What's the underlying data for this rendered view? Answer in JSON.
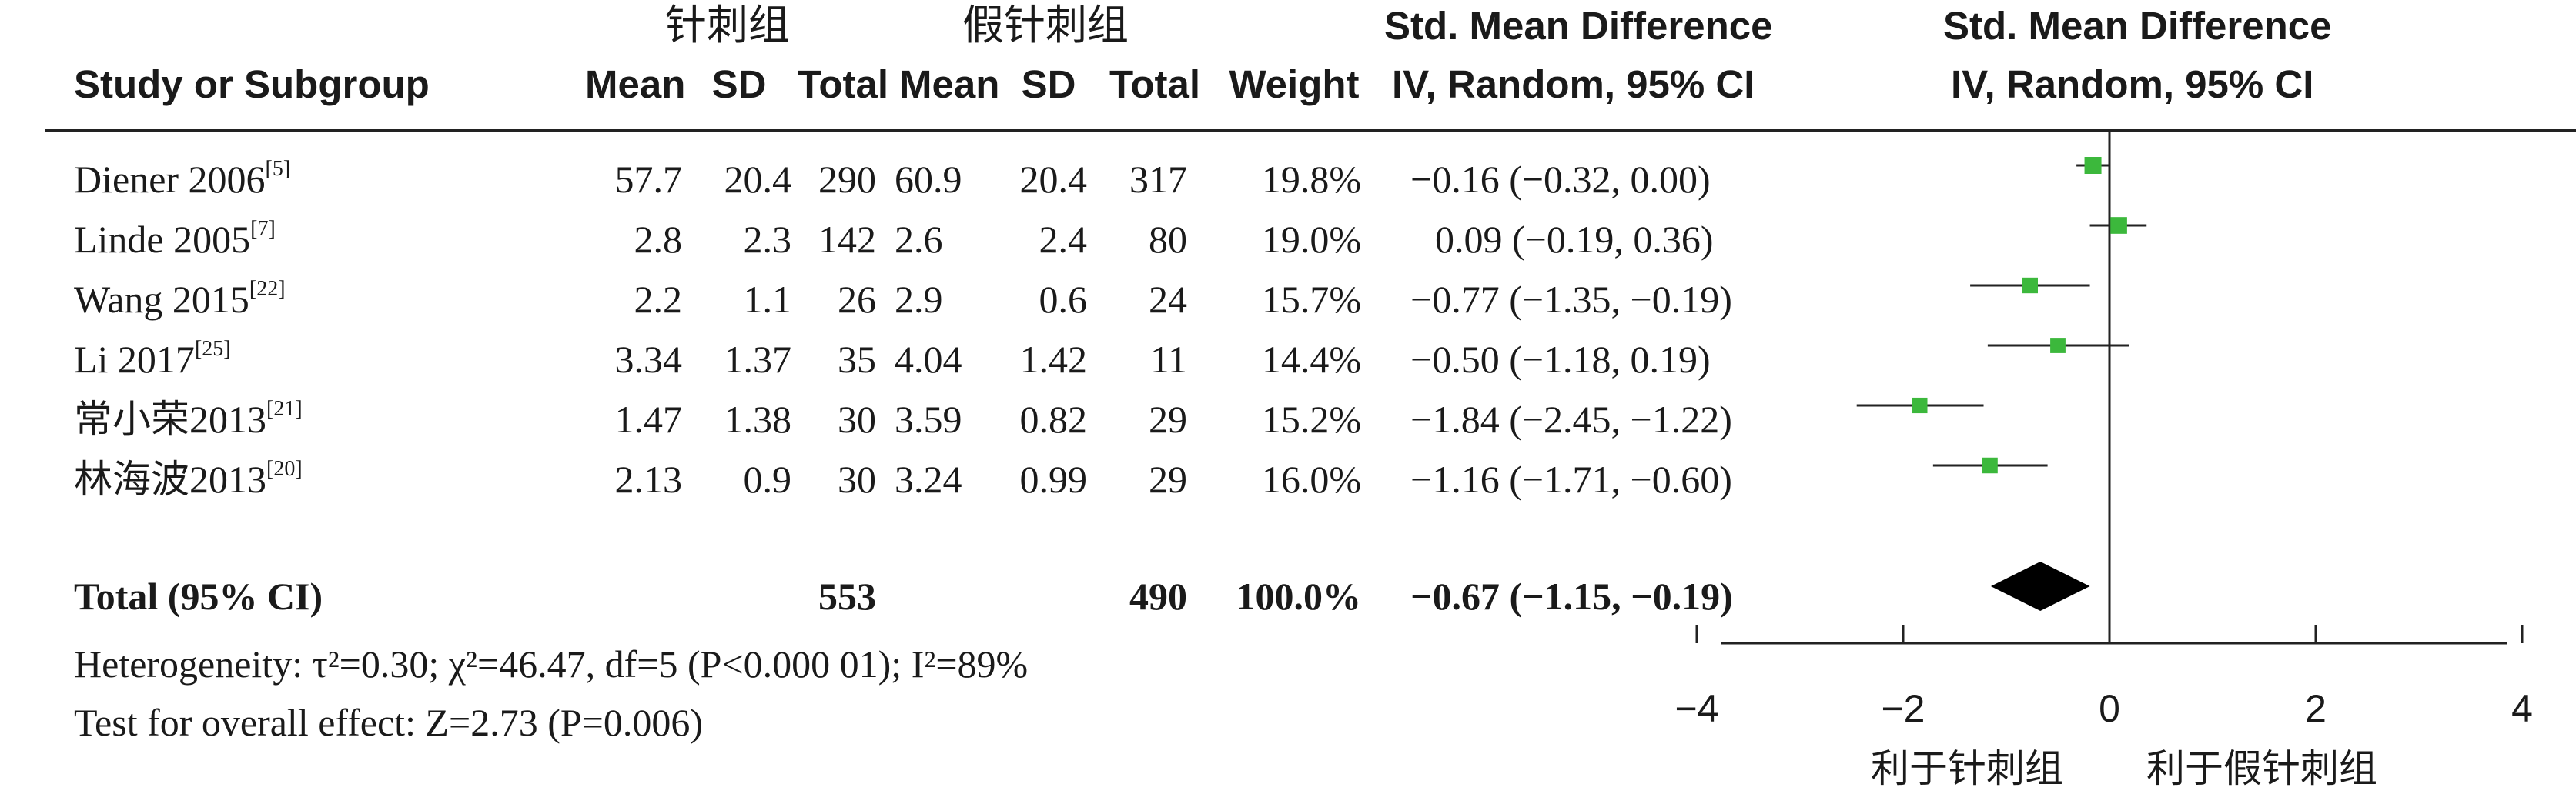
{
  "groups": {
    "experimental": "针刺组",
    "control": "假针刺组"
  },
  "headers": {
    "study": "Study or Subgroup",
    "mean_e": "Mean",
    "sd_e": "SD",
    "total_e": "Total",
    "mean_c": "Mean",
    "sd_c": "SD",
    "total_c": "Total",
    "weight": "Weight",
    "smd_title": "Std. Mean Difference",
    "smd_method": "IV, Random, 95% CI",
    "plot_title": "Std. Mean Difference",
    "plot_method": "IV, Random, 95% CI"
  },
  "studies": [
    {
      "name": "Diener 2006",
      "ref": "[5]",
      "mean_e": "57.7",
      "sd_e": "20.4",
      "n_e": "290",
      "mean_c": "60.9",
      "sd_c": "20.4",
      "n_c": "317",
      "weight": "19.8%",
      "ci_text": "−0.16 (−0.32, 0.00)"
    },
    {
      "name": "Linde 2005",
      "ref": "[7]",
      "mean_e": "2.8",
      "sd_e": "2.3",
      "n_e": "142",
      "mean_c": "2.6",
      "sd_c": "2.4",
      "n_c": "80",
      "weight": "19.0%",
      "ci_text": "0.09 (−0.19, 0.36)"
    },
    {
      "name": "Wang 2015",
      "ref": "[22]",
      "mean_e": "2.2",
      "sd_e": "1.1",
      "n_e": "26",
      "mean_c": "2.9",
      "sd_c": "0.6",
      "n_c": "24",
      "weight": "15.7%",
      "ci_text": "−0.77 (−1.35, −0.19)"
    },
    {
      "name": "Li 2017",
      "ref": "[25]",
      "mean_e": "3.34",
      "sd_e": "1.37",
      "n_e": "35",
      "mean_c": "4.04",
      "sd_c": "1.42",
      "n_c": "11",
      "weight": "14.4%",
      "ci_text": "−0.50 (−1.18, 0.19)"
    },
    {
      "name": "常小荣2013",
      "ref": "[21]",
      "mean_e": "1.47",
      "sd_e": "1.38",
      "n_e": "30",
      "mean_c": "3.59",
      "sd_c": "0.82",
      "n_c": "29",
      "weight": "15.2%",
      "ci_text": "−1.84 (−2.45, −1.22)"
    },
    {
      "name": "林海波2013",
      "ref": "[20]",
      "mean_e": "2.13",
      "sd_e": "0.9",
      "n_e": "30",
      "mean_c": "3.24",
      "sd_c": "0.99",
      "n_c": "29",
      "weight": "16.0%",
      "ci_text": "−1.16 (−1.71, −0.60)"
    }
  ],
  "total": {
    "label": "Total (95% CI)",
    "n_e": "553",
    "n_c": "490",
    "weight": "100.0%",
    "ci_text": "−0.67 (−1.15, −0.19)"
  },
  "footer": {
    "heterogeneity": "Heterogeneity: τ²=0.30; χ²=46.47, df=5 (P<0.000 01); I²=89%",
    "overall": "Test for overall effect: Z=2.73 (P=0.006)"
  },
  "axis_labels": {
    "left": "利于针刺组",
    "right": "利于假针刺组"
  },
  "colors": {
    "study_marker": "#3cb83c",
    "summary_marker": "#000000",
    "line": "#222222"
  },
  "chart_data": {
    "type": "forest",
    "x_range": [
      -4,
      4
    ],
    "x_ticks": [
      "−4",
      "−2",
      "0",
      "2",
      "4"
    ],
    "x_tick_values": [
      -4,
      -2,
      0,
      2,
      4
    ],
    "studies": [
      {
        "name": "Diener 2006",
        "estimate": -0.16,
        "lower": -0.32,
        "upper": 0.0,
        "weight": 19.8
      },
      {
        "name": "Linde 2005",
        "estimate": 0.09,
        "lower": -0.19,
        "upper": 0.36,
        "weight": 19.0
      },
      {
        "name": "Wang 2015",
        "estimate": -0.77,
        "lower": -1.35,
        "upper": -0.19,
        "weight": 15.7
      },
      {
        "name": "Li 2017",
        "estimate": -0.5,
        "lower": -1.18,
        "upper": 0.19,
        "weight": 14.4
      },
      {
        "name": "常小荣2013",
        "estimate": -1.84,
        "lower": -2.45,
        "upper": -1.22,
        "weight": 15.2
      },
      {
        "name": "林海波2013",
        "estimate": -1.16,
        "lower": -1.71,
        "upper": -0.6,
        "weight": 16.0
      }
    ],
    "summary": {
      "estimate": -0.67,
      "lower": -1.15,
      "upper": -0.19
    }
  }
}
